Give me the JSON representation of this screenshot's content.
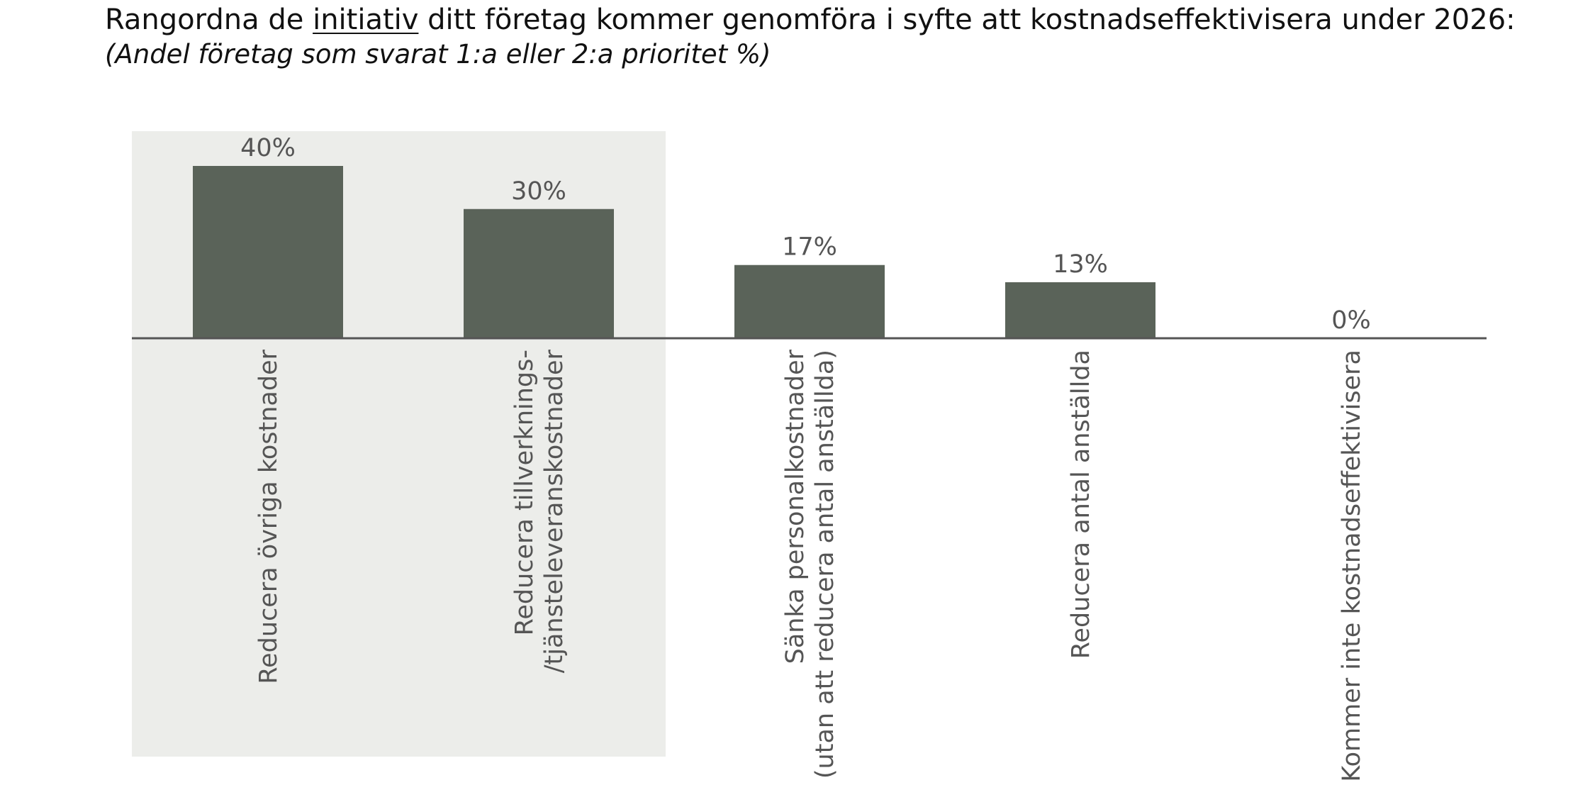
{
  "title": {
    "before": "Rangordna de ",
    "underlined": "initiativ",
    "after": " ditt företag kommer genomföra i syfte att kostnadseffektivisera under 2026:"
  },
  "subtitle": "(Andel företag som svarat 1:a eller 2:a prioritet %)",
  "chart_data": {
    "type": "bar",
    "categories": [
      [
        "Reducera övriga kostnader"
      ],
      [
        "Reducera tillverknings-",
        "/tjänsteleveranskostnader"
      ],
      [
        "Sänka personalkostnader",
        "(utan att reducera antal anställda)"
      ],
      [
        "Reducera antal anställda"
      ],
      [
        "Kommer inte kostnadseffektivisera"
      ]
    ],
    "values": [
      40,
      30,
      17,
      13,
      0
    ],
    "value_labels": [
      "40%",
      "30%",
      "17%",
      "13%",
      "0%"
    ],
    "ylim": [
      0,
      40
    ],
    "highlight_categories": [
      0,
      1
    ],
    "colors": {
      "bar": "#5a6359",
      "highlight_background": "#ecedea",
      "axis": "#555555",
      "label_text": "#555555"
    },
    "grid": false,
    "legend": "none"
  }
}
